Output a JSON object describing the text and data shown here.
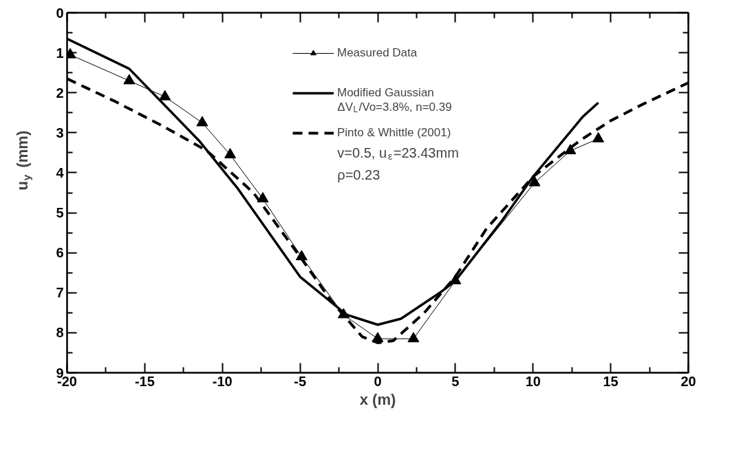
{
  "chart_data": {
    "type": "line",
    "xlabel": "x (m)",
    "ylabel": "u$_{y}$ (mm)",
    "xlim": [
      -20,
      20
    ],
    "xticks": [
      -20,
      -15,
      -10,
      -5,
      0,
      5,
      10,
      15,
      20
    ],
    "ylim": [
      9,
      0
    ],
    "yticks": [
      0,
      1,
      2,
      3,
      4,
      5,
      6,
      7,
      8,
      9
    ],
    "grid": false,
    "legend": "top",
    "series": [
      {
        "name": "Measured Data",
        "color": "#000000",
        "marker": "triangle",
        "line_style": "solid",
        "x": [
          -19.8,
          -16,
          -13.7,
          -11.3,
          -9.5,
          -7.4,
          -4.9,
          -2.2,
          0,
          2.3,
          5,
          10.1,
          12.4,
          14.2
        ],
        "values": [
          1.05,
          1.7,
          2.1,
          2.75,
          3.55,
          4.65,
          6.1,
          7.55,
          8.15,
          8.15,
          6.7,
          4.25,
          3.45,
          3.15
        ]
      },
      {
        "name": "Modified Gaussian",
        "color": "#000000",
        "marker": "none",
        "line_style": "solid",
        "x": [
          -20,
          -16,
          -11.5,
          -9,
          -5,
          -2,
          0,
          1.5,
          4,
          5,
          8,
          10,
          13.2,
          14.2
        ],
        "values": [
          0.65,
          1.4,
          3.2,
          4.4,
          6.6,
          7.55,
          7.8,
          7.65,
          7.0,
          6.7,
          5.2,
          4.1,
          2.6,
          2.25
        ]
      },
      {
        "name": "Pinto & Whittle (2001)",
        "color": "#000000",
        "marker": "none",
        "line_style": "dashed",
        "x": [
          -20,
          -17,
          -14,
          -11,
          -8,
          -5,
          -3,
          -1,
          0,
          1,
          3,
          5,
          7,
          10,
          13,
          15,
          17,
          20
        ],
        "values": [
          1.65,
          2.2,
          2.8,
          3.45,
          4.5,
          6.1,
          7.2,
          8.1,
          8.25,
          8.2,
          7.5,
          6.6,
          5.4,
          4.1,
          3.2,
          2.7,
          2.3,
          1.75
        ]
      }
    ],
    "annotations": [
      "ΔV$_{L}$/Vo=3.8%, n=0.39",
      "v=0.5, u$_{ε}$=23.43mm",
      "ρ=0.23"
    ]
  }
}
